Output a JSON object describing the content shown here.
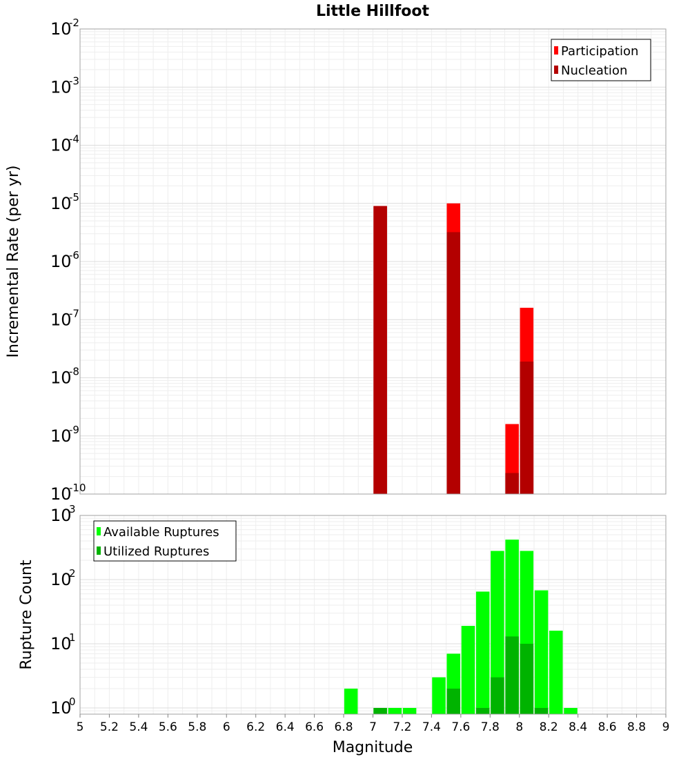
{
  "chart_data": [
    {
      "type": "bar",
      "title": "Little Hillfoot",
      "xlabel": "",
      "ylabel": "Incremental Rate (per yr)",
      "yscale": "log",
      "ylim": [
        1e-10,
        0.01
      ],
      "xlim": [
        5,
        9
      ],
      "grid": true,
      "legend_position": "top-right",
      "series": [
        {
          "name": "Participation",
          "color": "#ff0000",
          "x": [
            7.05,
            7.55,
            7.95,
            8.05
          ],
          "values": [
            9e-06,
            1e-05,
            1.6e-09,
            1.6e-07
          ]
        },
        {
          "name": "Nucleation",
          "color": "#b30000",
          "x": [
            7.05,
            7.55,
            7.95,
            8.05
          ],
          "values": [
            9e-06,
            3.2e-06,
            2.3e-10,
            1.9e-08
          ]
        }
      ]
    },
    {
      "type": "bar",
      "title": "",
      "xlabel": "Magnitude",
      "ylabel": "Rupture Count",
      "yscale": "log",
      "ylim": [
        0.8,
        1000
      ],
      "xlim": [
        5,
        9
      ],
      "grid": true,
      "legend_position": "top-left",
      "x_ticks": [
        "5",
        "5.2",
        "5.4",
        "5.6",
        "5.8",
        "6",
        "6.2",
        "6.4",
        "6.6",
        "6.8",
        "7",
        "7.2",
        "7.4",
        "7.6",
        "7.8",
        "8",
        "8.2",
        "8.4",
        "8.6",
        "8.8",
        "9"
      ],
      "series": [
        {
          "name": "Available Ruptures",
          "color": "#00ff00",
          "x": [
            6.85,
            7.05,
            7.15,
            7.25,
            7.45,
            7.55,
            7.65,
            7.75,
            7.85,
            7.95,
            8.05,
            8.15,
            8.25,
            8.35
          ],
          "values": [
            2,
            1,
            1,
            1,
            3,
            7,
            19,
            65,
            280,
            420,
            280,
            68,
            16,
            1
          ]
        },
        {
          "name": "Utilized Ruptures",
          "color": "#00b300",
          "x": [
            7.05,
            7.55,
            7.75,
            7.85,
            7.95,
            8.05,
            8.15
          ],
          "values": [
            1,
            2,
            1,
            3,
            13,
            10,
            1
          ]
        }
      ]
    }
  ]
}
